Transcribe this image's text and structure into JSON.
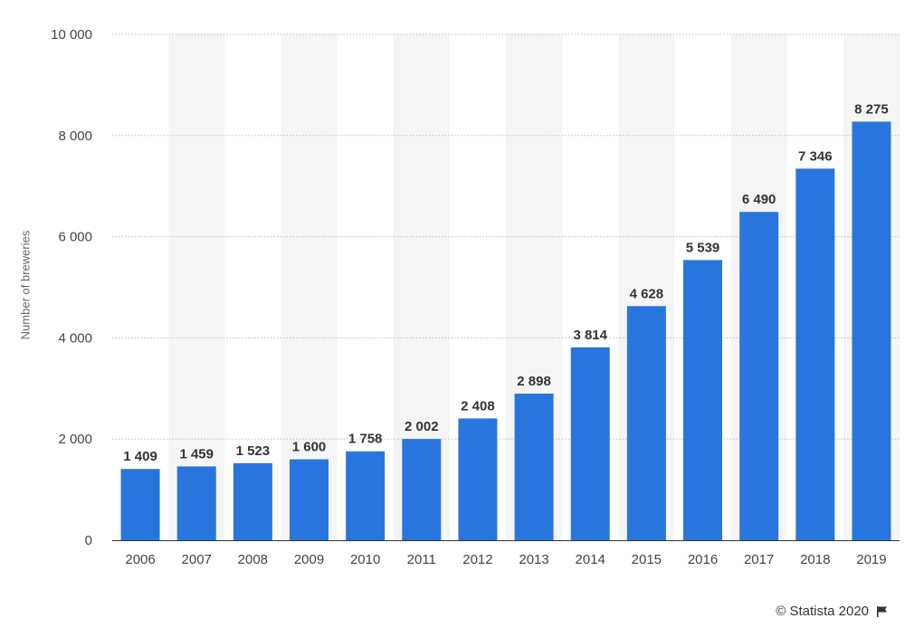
{
  "chart_data": {
    "type": "bar",
    "categories": [
      "2006",
      "2007",
      "2008",
      "2009",
      "2010",
      "2011",
      "2012",
      "2013",
      "2014",
      "2015",
      "2016",
      "2017",
      "2018",
      "2019"
    ],
    "values": [
      1409,
      1459,
      1523,
      1600,
      1758,
      2002,
      2408,
      2898,
      3814,
      4628,
      5539,
      6490,
      7346,
      8275
    ],
    "value_labels": [
      "1 409",
      "1 459",
      "1 523",
      "1 600",
      "1 758",
      "2 002",
      "2 408",
      "2 898",
      "3 814",
      "4 628",
      "5 539",
      "6 490",
      "7 346",
      "8 275"
    ],
    "ylabel": "Number of breweries",
    "xlabel": "",
    "ylim": [
      0,
      10000
    ],
    "yticks": [
      0,
      2000,
      4000,
      6000,
      8000,
      10000
    ],
    "ytick_labels": [
      "0",
      "2 000",
      "4 000",
      "6 000",
      "8 000",
      "10 000"
    ],
    "grid": true,
    "bar_color": "#2876dd",
    "band_color": "#f5f5f5"
  },
  "credit": {
    "text": "© Statista 2020",
    "icon": "flag-icon"
  }
}
